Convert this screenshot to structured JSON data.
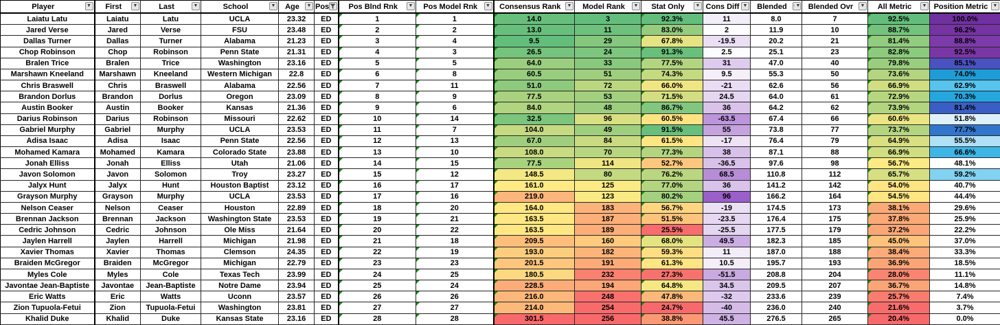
{
  "table": {
    "columns": [
      {
        "label": "Player",
        "key": "player",
        "icon": "dropdown"
      },
      {
        "label": "First",
        "key": "first",
        "icon": "dropdown"
      },
      {
        "label": "Last",
        "key": "last",
        "icon": "dropdown"
      },
      {
        "label": "School",
        "key": "school",
        "icon": "dropdown"
      },
      {
        "label": "Age",
        "key": "age",
        "icon": "dropdown"
      },
      {
        "label": "Pos",
        "key": "pos",
        "icon": "funnel-filter"
      },
      {
        "label": "Pos Blnd Rnk",
        "key": "pos_blnd_rnk",
        "icon": "dropdown"
      },
      {
        "label": "Pos Model Rnk",
        "key": "pos_model_rnk",
        "icon": "dropdown"
      },
      {
        "label": "Consensus Rank",
        "key": "consensus_rank",
        "icon": "dropdown"
      },
      {
        "label": "Model Rank",
        "key": "model_rank",
        "icon": "dropdown"
      },
      {
        "label": "Stat Only",
        "key": "stat_only",
        "icon": "dropdown"
      },
      {
        "label": "Cons Diff",
        "key": "cons_diff",
        "icon": "dropdown"
      },
      {
        "label": "Blended",
        "key": "blended",
        "icon": "sort-asc-dropdown"
      },
      {
        "label": "Blended Ovr",
        "key": "blended_ovr",
        "icon": "dropdown"
      },
      {
        "label": "All Metric",
        "key": "all_metric",
        "icon": "dropdown"
      },
      {
        "label": "Position Metric",
        "key": "position_metric",
        "icon": "dropdown"
      }
    ],
    "rows": [
      [
        "Laiatu Latu",
        "Laiatu",
        "Latu",
        "UCLA",
        "23.32",
        "ED",
        "1",
        "1",
        "14.0",
        "3",
        "92.3%",
        "11",
        "8.0",
        "7",
        "92.5%",
        "100.0%"
      ],
      [
        "Jared Verse",
        "Jared",
        "Verse",
        "FSU",
        "23.48",
        "ED",
        "2",
        "2",
        "13.0",
        "11",
        "83.0%",
        "2",
        "11.9",
        "10",
        "88.7%",
        "96.2%"
      ],
      [
        "Dallas Turner",
        "Dallas",
        "Turner",
        "Alabama",
        "21.23",
        "ED",
        "3",
        "4",
        "9.5",
        "29",
        "67.8%",
        "-19.5",
        "20.2",
        "21",
        "81.4%",
        "88.8%"
      ],
      [
        "Chop Robinson",
        "Chop",
        "Robinson",
        "Penn State",
        "21.31",
        "ED",
        "4",
        "3",
        "26.5",
        "24",
        "91.3%",
        "2.5",
        "25.1",
        "23",
        "82.8%",
        "92.5%"
      ],
      [
        "Bralen Trice",
        "Bralen",
        "Trice",
        "Washington",
        "23.16",
        "ED",
        "5",
        "5",
        "64.0",
        "33",
        "77.5%",
        "31",
        "47.0",
        "40",
        "79.8%",
        "85.1%"
      ],
      [
        "Marshawn Kneeland",
        "Marshawn",
        "Kneeland",
        "Western Michigan",
        "22.8",
        "ED",
        "6",
        "8",
        "60.5",
        "51",
        "74.3%",
        "9.5",
        "55.3",
        "50",
        "73.6%",
        "74.0%"
      ],
      [
        "Chris Braswell",
        "Chris",
        "Braswell",
        "Alabama",
        "22.56",
        "ED",
        "7",
        "11",
        "51.0",
        "72",
        "66.0%",
        "-21",
        "62.6",
        "56",
        "66.9%",
        "62.9%"
      ],
      [
        "Brandon Dorlus",
        "Brandon",
        "Dorlus",
        "Oregon",
        "23.09",
        "ED",
        "8",
        "9",
        "77.5",
        "53",
        "71.5%",
        "24.5",
        "64.0",
        "61",
        "72.9%",
        "70.3%"
      ],
      [
        "Austin Booker",
        "Austin",
        "Booker",
        "Kansas",
        "21.36",
        "ED",
        "9",
        "6",
        "84.0",
        "48",
        "86.7%",
        "36",
        "64.2",
        "62",
        "73.9%",
        "81.4%"
      ],
      [
        "Darius Robinson",
        "Darius",
        "Robinson",
        "Missouri",
        "22.62",
        "ED",
        "10",
        "14",
        "32.5",
        "96",
        "60.5%",
        "-63.5",
        "67.4",
        "66",
        "60.6%",
        "51.8%"
      ],
      [
        "Gabriel Murphy",
        "Gabriel",
        "Murphy",
        "UCLA",
        "23.53",
        "ED",
        "11",
        "7",
        "104.0",
        "49",
        "91.5%",
        "55",
        "73.8",
        "77",
        "73.7%",
        "77.7%"
      ],
      [
        "Adisa Isaac",
        "Adisa",
        "Isaac",
        "Penn State",
        "22.56",
        "ED",
        "12",
        "13",
        "67.0",
        "84",
        "61.5%",
        "-17",
        "76.4",
        "79",
        "64.9%",
        "55.5%"
      ],
      [
        "Mohamed Kamara",
        "Mohamed",
        "Kamara",
        "Colorado State",
        "23.88",
        "ED",
        "13",
        "10",
        "108.0",
        "70",
        "77.3%",
        "38",
        "87.1",
        "88",
        "66.9%",
        "66.6%"
      ],
      [
        "Jonah Elliss",
        "Jonah",
        "Elliss",
        "Utah",
        "21.06",
        "ED",
        "14",
        "15",
        "77.5",
        "114",
        "52.7%",
        "-36.5",
        "97.6",
        "98",
        "56.7%",
        "48.1%"
      ],
      [
        "Javon Solomon",
        "Javon",
        "Solomon",
        "Troy",
        "23.27",
        "ED",
        "15",
        "12",
        "148.5",
        "80",
        "76.2%",
        "68.5",
        "110.8",
        "112",
        "65.7%",
        "59.2%"
      ],
      [
        "Jalyx Hunt",
        "Jalyx",
        "Hunt",
        "Houston Baptist",
        "23.12",
        "ED",
        "16",
        "17",
        "161.0",
        "125",
        "77.0%",
        "36",
        "141.2",
        "142",
        "54.0%",
        "40.7%"
      ],
      [
        "Grayson Murphy",
        "Grayson",
        "Murphy",
        "UCLA",
        "23.53",
        "ED",
        "17",
        "16",
        "219.0",
        "123",
        "80.2%",
        "96",
        "166.2",
        "164",
        "54.5%",
        "44.4%"
      ],
      [
        "Nelson Ceaser",
        "Nelson",
        "Ceaser",
        "Houston",
        "22.89",
        "ED",
        "18",
        "20",
        "164.0",
        "183",
        "56.7%",
        "-19",
        "174.5",
        "173",
        "38.1%",
        "29.6%"
      ],
      [
        "Brennan Jackson",
        "Brennan",
        "Jackson",
        "Washington State",
        "23.53",
        "ED",
        "19",
        "21",
        "163.5",
        "187",
        "51.5%",
        "-23.5",
        "176.4",
        "175",
        "37.8%",
        "25.9%"
      ],
      [
        "Cedric Johnson",
        "Cedric",
        "Johnson",
        "Ole Miss",
        "21.64",
        "ED",
        "20",
        "22",
        "163.5",
        "189",
        "25.5%",
        "-25.5",
        "177.5",
        "179",
        "37.2%",
        "22.2%"
      ],
      [
        "Jaylen Harrell",
        "Jaylen",
        "Harrell",
        "Michigan",
        "21.98",
        "ED",
        "21",
        "18",
        "209.5",
        "160",
        "68.0%",
        "49.5",
        "182.3",
        "185",
        "45.0%",
        "37.0%"
      ],
      [
        "Xavier Thomas",
        "Xavier",
        "Thomas",
        "Clemson",
        "24.35",
        "ED",
        "22",
        "19",
        "193.0",
        "182",
        "59.3%",
        "11",
        "187.0",
        "188",
        "38.4%",
        "33.3%"
      ],
      [
        "Braiden McGregor",
        "Braiden",
        "McGregor",
        "Michigan",
        "22.79",
        "ED",
        "23",
        "23",
        "201.5",
        "191",
        "61.3%",
        "10.5",
        "195.7",
        "193",
        "36.9%",
        "18.5%"
      ],
      [
        "Myles Cole",
        "Myles",
        "Cole",
        "Texas Tech",
        "23.99",
        "ED",
        "24",
        "25",
        "180.5",
        "232",
        "27.3%",
        "-51.5",
        "208.8",
        "204",
        "28.0%",
        "11.1%"
      ],
      [
        "Javontae Jean-Baptiste",
        "Javontae",
        "Jean-Baptiste",
        "Notre Dame",
        "23.94",
        "ED",
        "25",
        "24",
        "228.5",
        "194",
        "64.8%",
        "34.5",
        "209.5",
        "207",
        "36.7%",
        "14.8%"
      ],
      [
        "Eric Watts",
        "Eric",
        "Watts",
        "Uconn",
        "23.57",
        "ED",
        "26",
        "26",
        "216.0",
        "248",
        "47.8%",
        "-32",
        "233.6",
        "239",
        "25.7%",
        "7.4%"
      ],
      [
        "Zion Tupuola-Fetui",
        "Zion",
        "Tupuola-Fetui",
        "Washington",
        "23.81",
        "ED",
        "27",
        "27",
        "214.0",
        "254",
        "24.7%",
        "-40",
        "236.0",
        "240",
        "21.6%",
        "3.7%"
      ],
      [
        "Khalid Duke",
        "Khalid",
        "Duke",
        "Kansas State",
        "23.16",
        "ED",
        "28",
        "28",
        "301.5",
        "256",
        "38.8%",
        "45.5",
        "276.5",
        "265",
        "20.4%",
        "0.0%"
      ]
    ]
  },
  "colors": {
    "scale_green": "#63BE7B",
    "scale_yellow": "#FFEB84",
    "scale_red": "#F8696B",
    "error_indicator_green": "#128a12",
    "cons_diff_purple": "#9A5FC8",
    "position_metric_top_purple": "#7030A0"
  },
  "scales": {
    "consensus_rank": {
      "min": 9.5,
      "mid": 160,
      "max": 301.5,
      "direction": "low-good"
    },
    "model_rank": {
      "min": 3,
      "mid": 127,
      "max": 256,
      "direction": "low-good"
    },
    "stat_only": {
      "min": 24.7,
      "mid": 63,
      "max": 92.3,
      "direction": "high-good"
    },
    "all_metric": {
      "min": 20.4,
      "mid": 56,
      "max": 92.5,
      "direction": "high-good"
    },
    "cons_diff": {
      "max_abs": 96
    },
    "position_metric": {
      "stops": [
        [
          48,
          "#FFFFFF"
        ],
        [
          52,
          "#DCF0FA"
        ],
        [
          56,
          "#A8DEF5"
        ],
        [
          63,
          "#55C4ED"
        ],
        [
          70,
          "#26A7DF"
        ],
        [
          74,
          "#1E9CD7"
        ],
        [
          78,
          "#3272CC"
        ],
        [
          82,
          "#3B5BC4"
        ],
        [
          86,
          "#4F4EC0"
        ],
        [
          89,
          "#8039A8"
        ],
        [
          100,
          "#7030A0"
        ]
      ]
    }
  }
}
